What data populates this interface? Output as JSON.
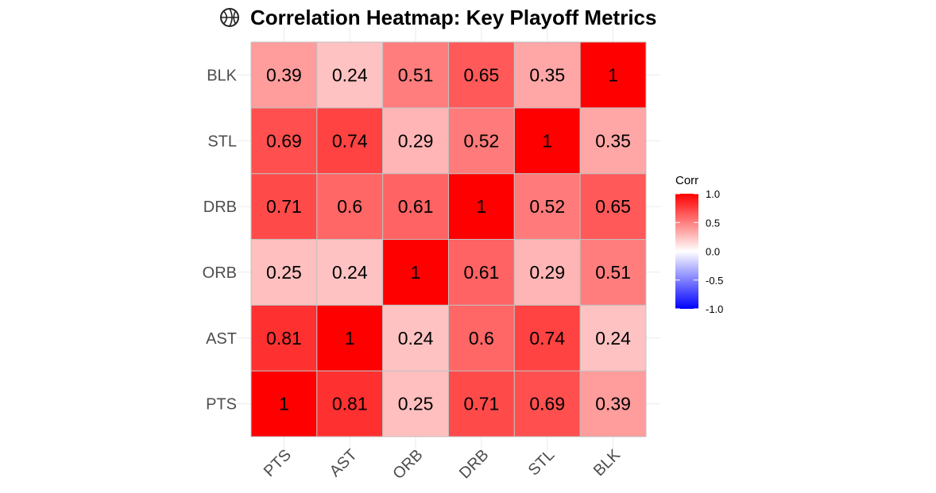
{
  "title": "Correlation Heatmap: Key Playoff Metrics",
  "title_icon": "basketball-icon",
  "chart_data": {
    "type": "heatmap",
    "title": "Correlation Heatmap: Key Playoff Metrics",
    "x_categories": [
      "PTS",
      "AST",
      "ORB",
      "DRB",
      "STL",
      "BLK"
    ],
    "y_categories": [
      "PTS",
      "AST",
      "ORB",
      "DRB",
      "STL",
      "BLK"
    ],
    "matrix": [
      [
        1,
        0.81,
        0.25,
        0.71,
        0.69,
        0.39
      ],
      [
        0.81,
        1,
        0.24,
        0.6,
        0.74,
        0.24
      ],
      [
        0.25,
        0.24,
        1,
        0.61,
        0.29,
        0.51
      ],
      [
        0.71,
        0.6,
        0.61,
        1,
        0.52,
        0.65
      ],
      [
        0.69,
        0.74,
        0.29,
        0.52,
        1,
        0.35
      ],
      [
        0.39,
        0.24,
        0.51,
        0.65,
        0.35,
        1
      ]
    ],
    "legend": {
      "title": "Corr",
      "ticks": [
        "1.0",
        "0.5",
        "0.0",
        "-0.5",
        "-1.0"
      ],
      "tick_values": [
        1.0,
        0.5,
        0.0,
        -0.5,
        -1.0
      ],
      "range": [
        -1,
        1
      ],
      "low_color": "#0000ff",
      "mid_color": "#ffffff",
      "high_color": "#ff0000",
      "placement": "right"
    },
    "cell_border_color": "#c0c0c0",
    "grid": true
  }
}
